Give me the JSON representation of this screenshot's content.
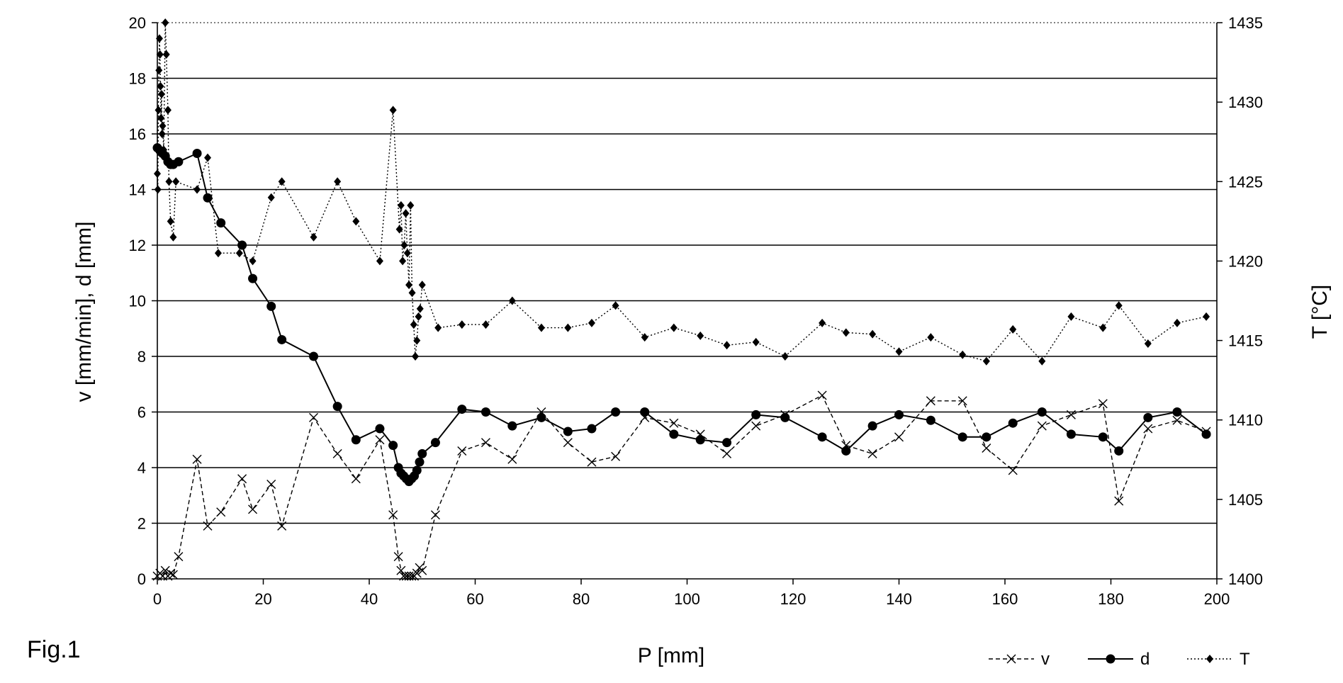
{
  "figure_label": "Fig.1",
  "chart_data": {
    "type": "line",
    "xlabel": "P [mm]",
    "ylabel_left": "v [mm/min], d [mm]",
    "ylabel_right": "T [°C]",
    "xlim": [
      0,
      200
    ],
    "ylim_left": [
      0,
      20
    ],
    "ylim_right": [
      1400,
      1435
    ],
    "x_ticks": [
      "0",
      "20",
      "40",
      "60",
      "80",
      "100",
      "120",
      "140",
      "160",
      "180",
      "200"
    ],
    "y_left_ticks": [
      "0",
      "2",
      "4",
      "6",
      "8",
      "10",
      "12",
      "14",
      "16",
      "18",
      "20"
    ],
    "y_right_ticks": [
      "1400",
      "1405",
      "1410",
      "1415",
      "1420",
      "1425",
      "1430",
      "1435"
    ],
    "grid": "horizontal",
    "legend_position": "bottom-right",
    "series": [
      {
        "name": "v",
        "axis": "left",
        "marker": "x",
        "line": "dashed",
        "x": [
          0,
          0.5,
          1,
          1.5,
          2,
          2.5,
          3,
          4,
          7.5,
          9.5,
          12,
          16,
          18,
          21.5,
          23.5,
          29.5,
          34,
          37.5,
          42,
          44.5,
          45.5,
          46,
          46.5,
          47,
          47.5,
          48,
          48.5,
          49,
          49.5,
          50,
          52.5,
          57.5,
          62,
          67,
          72.5,
          77.5,
          82,
          86.5,
          92,
          97.5,
          102.5,
          107.5,
          113,
          118.5,
          125.5,
          130,
          135,
          140,
          146,
          152,
          156.5,
          161.5,
          167,
          172.5,
          178.5,
          181.5,
          187,
          192.5,
          198
        ],
        "values": [
          0.1,
          0.2,
          0.1,
          0.3,
          0.1,
          0.2,
          0.15,
          0.8,
          4.3,
          1.9,
          2.4,
          3.6,
          2.5,
          3.4,
          1.9,
          5.8,
          4.5,
          3.6,
          5.0,
          2.3,
          0.8,
          0.3,
          0.1,
          0.1,
          0.1,
          0.1,
          0.1,
          0.2,
          0.4,
          0.3,
          2.3,
          4.6,
          4.9,
          4.3,
          6.0,
          4.9,
          4.2,
          4.4,
          5.8,
          5.6,
          5.2,
          4.5,
          5.5,
          5.9,
          6.6,
          4.8,
          4.5,
          5.1,
          6.4,
          6.4,
          4.7,
          3.9,
          5.5,
          5.9,
          6.3,
          2.8,
          5.4,
          5.7,
          5.3
        ]
      },
      {
        "name": "d",
        "axis": "left",
        "marker": "filled-circle",
        "line": "solid",
        "x": [
          0,
          0.5,
          1,
          1.5,
          2,
          2.5,
          3,
          4,
          7.5,
          9.5,
          12,
          16,
          18,
          21.5,
          23.5,
          29.5,
          34,
          37.5,
          42,
          44.5,
          45.5,
          46,
          46.5,
          47,
          47.5,
          48,
          48.5,
          49,
          49.5,
          50,
          52.5,
          57.5,
          62,
          67,
          72.5,
          77.5,
          82,
          86.5,
          92,
          97.5,
          102.5,
          107.5,
          113,
          118.5,
          125.5,
          130,
          135,
          140,
          146,
          152,
          156.5,
          161.5,
          167,
          172.5,
          178.5,
          181.5,
          187,
          192.5,
          198
        ],
        "values": [
          15.5,
          15.4,
          15.3,
          15.2,
          15.0,
          14.9,
          14.9,
          15.0,
          15.3,
          13.7,
          12.8,
          12.0,
          10.8,
          9.8,
          8.6,
          8.0,
          6.2,
          5.0,
          5.4,
          4.8,
          4.0,
          3.8,
          3.7,
          3.6,
          3.5,
          3.6,
          3.7,
          3.9,
          4.2,
          4.5,
          4.9,
          6.1,
          6.0,
          5.5,
          5.8,
          5.3,
          5.4,
          6.0,
          6.0,
          5.2,
          5.0,
          4.9,
          5.9,
          5.8,
          5.1,
          4.6,
          5.5,
          5.9,
          5.7,
          5.1,
          5.1,
          5.6,
          6.0,
          5.2,
          5.1,
          4.6,
          5.8,
          6.0,
          5.2
        ]
      },
      {
        "name": "T",
        "axis": "right",
        "marker": "filled-diamond",
        "line": "dotted",
        "x": [
          0,
          0.1,
          0.2,
          0.3,
          0.4,
          0.5,
          0.6,
          0.7,
          0.8,
          0.9,
          1.0,
          1.2,
          1.5,
          1.7,
          2.0,
          2.2,
          2.5,
          3,
          3.5,
          7.5,
          9.5,
          11.5,
          15.5,
          18,
          21.5,
          23.5,
          29.5,
          34,
          37.5,
          42,
          44.5,
          45.7,
          46,
          46.3,
          46.6,
          46.9,
          47.2,
          47.5,
          47.8,
          48.1,
          48.4,
          48.7,
          49,
          49.3,
          49.6,
          50,
          53,
          57.5,
          62,
          67,
          72.5,
          77.5,
          82,
          86.5,
          92,
          97.5,
          102.5,
          107.5,
          113,
          118.5,
          125.5,
          130,
          135,
          140,
          146,
          152,
          156.5,
          161.5,
          167,
          172.5,
          178.5,
          181.5,
          187,
          192.5,
          198
        ],
        "values": [
          1425.5,
          1424.5,
          1429.5,
          1432.0,
          1434.0,
          1433.0,
          1431.0,
          1429.0,
          1430.5,
          1428.0,
          1428.5,
          1427.0,
          1435.0,
          1433.0,
          1429.5,
          1425.0,
          1422.5,
          1421.5,
          1425.0,
          1424.5,
          1426.5,
          1420.5,
          1420.5,
          1420.0,
          1424.0,
          1425.0,
          1421.5,
          1425.0,
          1422.5,
          1420.0,
          1429.5,
          1422.0,
          1423.5,
          1420.0,
          1421.0,
          1423.0,
          1420.5,
          1418.5,
          1423.5,
          1418.0,
          1416.0,
          1414.0,
          1415.0,
          1416.5,
          1417.0,
          1418.5,
          1415.8,
          1416.0,
          1416.0,
          1417.5,
          1415.8,
          1415.8,
          1416.1,
          1417.2,
          1415.2,
          1415.8,
          1415.3,
          1414.7,
          1414.9,
          1414.0,
          1416.1,
          1415.5,
          1415.4,
          1414.3,
          1415.2,
          1414.1,
          1413.7,
          1415.7,
          1413.7,
          1416.5,
          1415.8,
          1417.2,
          1414.8,
          1416.1,
          1416.5
        ]
      }
    ]
  }
}
